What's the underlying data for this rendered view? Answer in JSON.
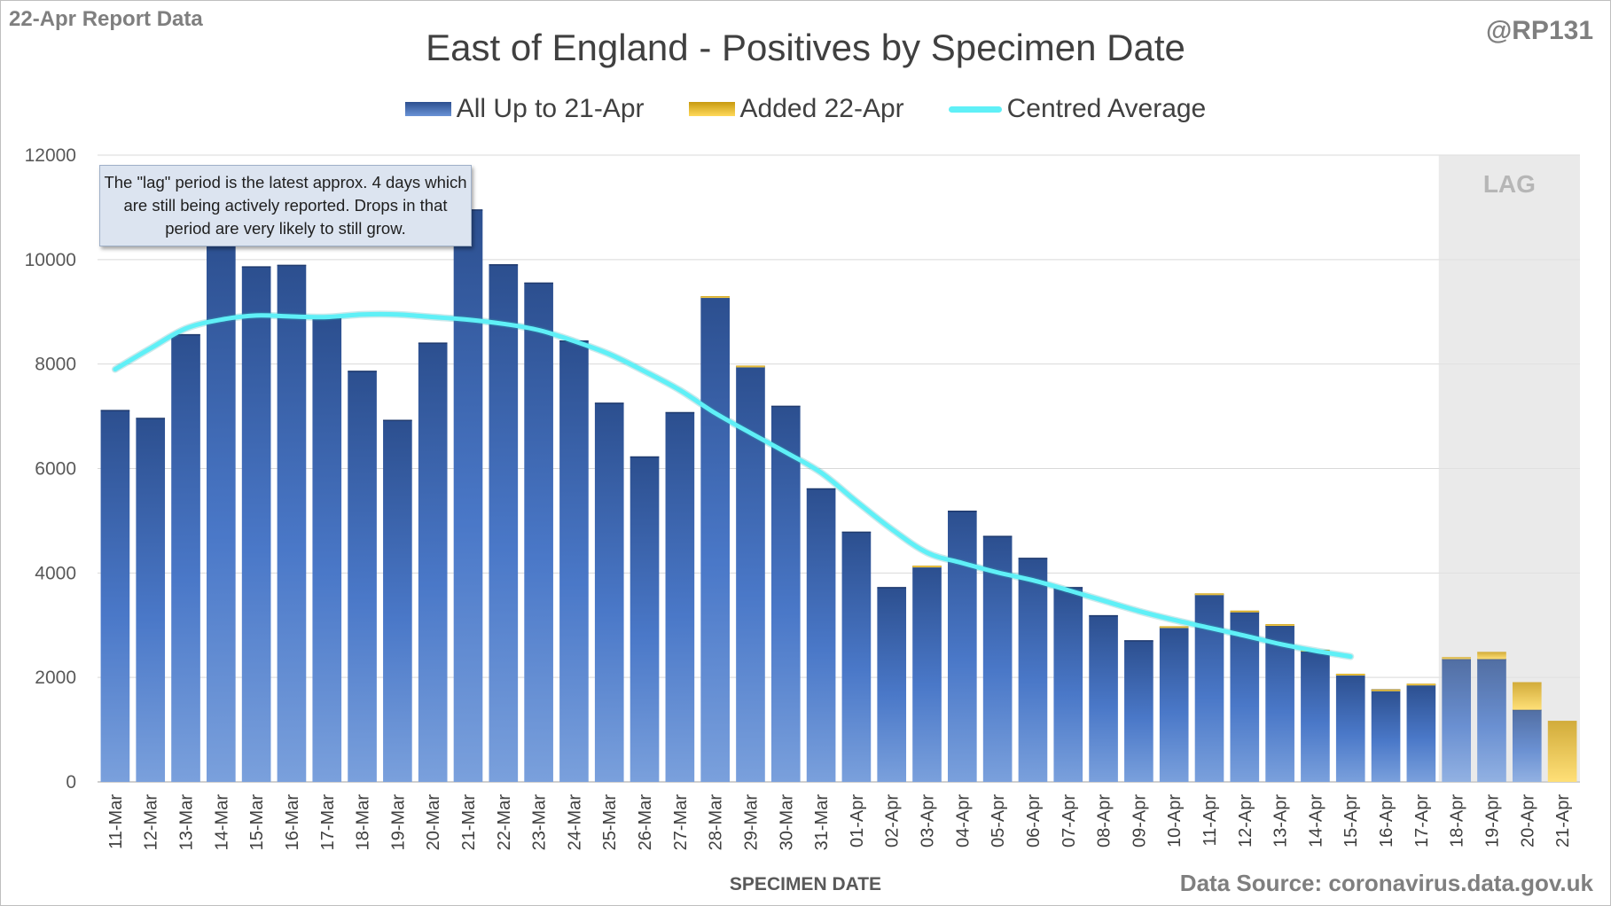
{
  "report_label": "22-Apr Report Data",
  "handle": "@RP131",
  "source": "Data Source: coronavirus.data.gov.uk",
  "note": "The \"lag\" period is the latest approx. 4 days which are still being actively reported.  Drops in that period are very likely to still grow.",
  "lag_label": "LAG",
  "colors": {
    "base_top": "#2c4f8f",
    "base_bottom": "#7aa0dc",
    "added_top": "#c89a10",
    "added_bottom": "#ffd95a",
    "average": "#5ff0f7",
    "lag_band": "#e6e6e6",
    "grid": "#d9d9d9"
  },
  "chart_data": {
    "type": "bar",
    "stacked": true,
    "title": "East of England - Positives by Specimen Date",
    "xlabel": "SPECIMEN DATE",
    "ylabel": "",
    "ylim": [
      0,
      12000
    ],
    "yticks": [
      0,
      2000,
      4000,
      6000,
      8000,
      10000,
      12000
    ],
    "grid": true,
    "legend_position": "top",
    "categories": [
      "11-Mar",
      "12-Mar",
      "13-Mar",
      "14-Mar",
      "15-Mar",
      "16-Mar",
      "17-Mar",
      "18-Mar",
      "19-Mar",
      "20-Mar",
      "21-Mar",
      "22-Mar",
      "23-Mar",
      "24-Mar",
      "25-Mar",
      "26-Mar",
      "27-Mar",
      "28-Mar",
      "29-Mar",
      "30-Mar",
      "31-Mar",
      "01-Apr",
      "02-Apr",
      "03-Apr",
      "04-Apr",
      "05-Apr",
      "06-Apr",
      "07-Apr",
      "08-Apr",
      "09-Apr",
      "10-Apr",
      "11-Apr",
      "12-Apr",
      "13-Apr",
      "14-Apr",
      "15-Apr",
      "16-Apr",
      "17-Apr",
      "18-Apr",
      "19-Apr",
      "20-Apr",
      "21-Apr"
    ],
    "series": [
      {
        "name": "All Up to 21-Apr",
        "values": [
          7110,
          6960,
          8560,
          10470,
          9860,
          9890,
          8880,
          7860,
          6920,
          8400,
          10950,
          9900,
          9550,
          8440,
          7250,
          6220,
          7070,
          9280,
          7950,
          7190,
          5610,
          4780,
          3720,
          4120,
          5180,
          4700,
          4280,
          3720,
          3180,
          2700,
          2960,
          3590,
          3250,
          2990,
          2500,
          2050,
          1760,
          1860,
          2350,
          2350,
          1380,
          0
        ]
      },
      {
        "name": "Added 22-Apr",
        "values": [
          0,
          0,
          0,
          0,
          0,
          0,
          0,
          0,
          0,
          0,
          0,
          0,
          0,
          0,
          0,
          0,
          0,
          20,
          20,
          0,
          0,
          0,
          0,
          20,
          0,
          0,
          0,
          0,
          0,
          0,
          20,
          20,
          30,
          30,
          30,
          20,
          10,
          20,
          40,
          140,
          530,
          1170
        ]
      },
      {
        "name": "Centred Average",
        "type": "line",
        "values": [
          7900,
          8300,
          8680,
          8850,
          8930,
          8910,
          8900,
          8950,
          8950,
          8900,
          8850,
          8770,
          8650,
          8440,
          8190,
          7860,
          7500,
          7060,
          6680,
          6310,
          5920,
          5370,
          4840,
          4390,
          4190,
          4010,
          3860,
          3670,
          3470,
          3270,
          3100,
          2950,
          2800,
          2640,
          2510,
          2400,
          null,
          null,
          null,
          null,
          null,
          null
        ]
      }
    ],
    "lag_period": [
      "18-Apr",
      "21-Apr"
    ]
  }
}
